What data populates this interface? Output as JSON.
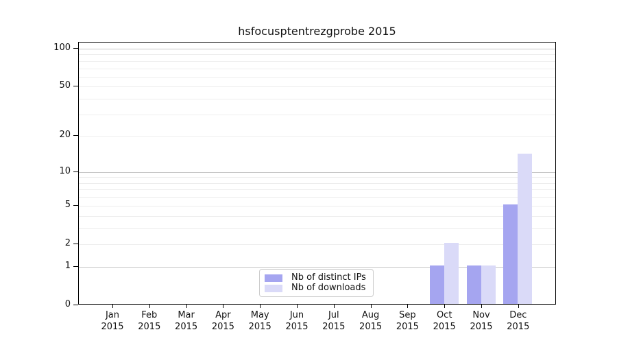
{
  "figure": {
    "background": "#ffffff"
  },
  "chart_data": {
    "type": "bar",
    "title": "hsfocusptentrezgprobe 2015",
    "categories": [
      "Jan 2015",
      "Feb 2015",
      "Mar 2015",
      "Apr 2015",
      "May 2015",
      "Jun 2015",
      "Jul 2015",
      "Aug 2015",
      "Sep 2015",
      "Oct 2015",
      "Nov 2015",
      "Dec 2015"
    ],
    "series": [
      {
        "name": "Nb of distinct IPs",
        "color": "#a5a5f0",
        "values": [
          0,
          0,
          0,
          0,
          0,
          0,
          0,
          0,
          0,
          1,
          1,
          5
        ]
      },
      {
        "name": "Nb of downloads",
        "color": "#dadaf8",
        "values": [
          0,
          0,
          0,
          0,
          0,
          0,
          0,
          0,
          0,
          2,
          1,
          14
        ]
      }
    ],
    "y_axis": {
      "scale": "log1p",
      "tick_values": [
        0,
        1,
        2,
        5,
        10,
        20,
        50,
        100
      ],
      "tick_labels": [
        "0",
        "1",
        "2",
        "5",
        "10",
        "20",
        "50",
        "100"
      ],
      "major_gridlines": [
        1,
        10,
        100
      ],
      "minor_gridlines": [
        2,
        3,
        4,
        5,
        6,
        7,
        8,
        9,
        20,
        30,
        40,
        50,
        60,
        70,
        80,
        90
      ],
      "ylim": [
        0,
        112
      ]
    },
    "xlabel": "",
    "ylabel": "",
    "grid": true,
    "legend_position": "lower center"
  },
  "colors": {
    "spine": "#000000",
    "major_grid": "#c6c6c6",
    "minor_grid": "#ededed",
    "text": "#111111",
    "background": "#ffffff"
  }
}
